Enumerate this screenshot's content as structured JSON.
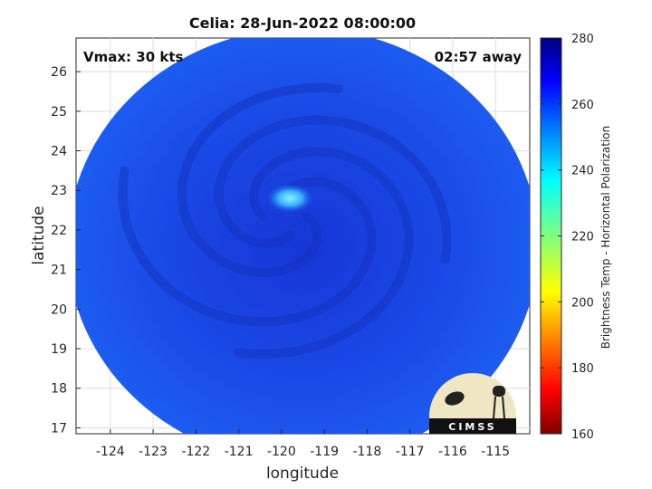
{
  "chart_data": {
    "type": "heatmap",
    "title": "Celia: 28-Jun-2022 08:00:00",
    "xlabel": "longitude",
    "ylabel": "latitude",
    "xlim": [
      -124.8,
      -114.2
    ],
    "ylim": [
      16.85,
      26.85
    ],
    "xticks": [
      -124,
      -123,
      -122,
      -121,
      -120,
      -119,
      -118,
      -117,
      -116,
      -115
    ],
    "yticks": [
      17,
      18,
      19,
      20,
      21,
      22,
      23,
      24,
      25,
      26
    ],
    "grid": true,
    "annotations": {
      "left": "Vmax: 30 kts",
      "right": "02:57 away"
    },
    "colorbar": {
      "label": "Brightness Temp - Horizontal Polarization",
      "range": [
        160,
        280
      ],
      "ticks": [
        160,
        180,
        200,
        220,
        240,
        260,
        280
      ],
      "colormap": "jet"
    },
    "swath": {
      "center": [
        -119.5,
        21.6
      ],
      "radius_deg": 5.5
    },
    "eye_warm_feature": {
      "center": [
        -119.8,
        22.8
      ],
      "value_approx": 245
    },
    "background_value_approx": 262,
    "spiral_band_value_approx": 270
  },
  "logo": {
    "text": "CIMSS"
  }
}
